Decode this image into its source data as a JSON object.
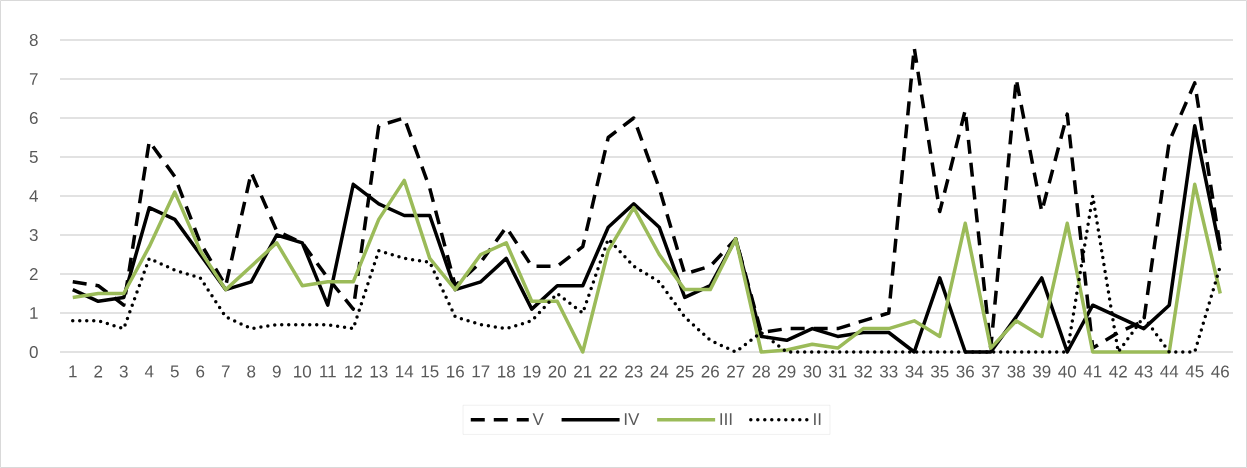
{
  "chart_data": {
    "type": "line",
    "categories": [
      "1",
      "2",
      "3",
      "4",
      "5",
      "6",
      "7",
      "8",
      "9",
      "10",
      "11",
      "12",
      "13",
      "14",
      "15",
      "16",
      "17",
      "18",
      "19",
      "20",
      "21",
      "22",
      "23",
      "24",
      "25",
      "26",
      "27",
      "28",
      "29",
      "30",
      "31",
      "32",
      "33",
      "34",
      "35",
      "36",
      "37",
      "38",
      "39",
      "40",
      "41",
      "42",
      "43",
      "44",
      "45",
      "46"
    ],
    "ylim": [
      0,
      8
    ],
    "yticks": [
      0,
      1,
      2,
      3,
      4,
      5,
      6,
      7,
      8
    ],
    "grid": "y",
    "legend": "bottom",
    "series": [
      {
        "name": "V",
        "color": "#000000",
        "line_style": "dashed",
        "values": [
          1.8,
          1.7,
          1.2,
          5.4,
          4.5,
          2.8,
          1.7,
          4.6,
          3.1,
          2.8,
          1.9,
          1.1,
          5.8,
          6.0,
          4.2,
          1.7,
          2.3,
          3.2,
          2.2,
          2.2,
          2.7,
          5.5,
          6.0,
          4.2,
          2.0,
          2.2,
          2.9,
          0.5,
          0.6,
          0.6,
          0.6,
          0.8,
          1.0,
          7.8,
          3.6,
          6.2,
          0.1,
          7.0,
          3.6,
          6.1,
          0.1,
          0.5,
          0.8,
          5.4,
          6.9,
          2.7
        ]
      },
      {
        "name": "IV",
        "color": "#000000",
        "line_style": "solid",
        "values": [
          1.6,
          1.3,
          1.4,
          3.7,
          3.4,
          2.5,
          1.6,
          1.8,
          3.0,
          2.8,
          1.2,
          4.3,
          3.8,
          3.5,
          3.5,
          1.6,
          1.8,
          2.4,
          1.1,
          1.7,
          1.7,
          3.2,
          3.8,
          3.2,
          1.4,
          1.7,
          2.9,
          0.4,
          0.3,
          0.6,
          0.4,
          0.5,
          0.5,
          0,
          1.9,
          0,
          0,
          0.9,
          1.9,
          0,
          1.2,
          0.9,
          0.6,
          1.2,
          5.8,
          2.6
        ]
      },
      {
        "name": "III",
        "color": "#9bbb59",
        "line_style": "solid",
        "values": [
          1.4,
          1.5,
          1.5,
          2.7,
          4.1,
          2.6,
          1.6,
          2.2,
          2.8,
          1.7,
          1.8,
          1.8,
          3.4,
          4.4,
          2.4,
          1.6,
          2.5,
          2.8,
          1.3,
          1.3,
          0,
          2.6,
          3.7,
          2.5,
          1.6,
          1.6,
          2.9,
          0,
          0.05,
          0.2,
          0.1,
          0.6,
          0.6,
          0.8,
          0.4,
          3.3,
          0.1,
          0.8,
          0.4,
          3.3,
          0,
          0,
          0,
          0,
          4.3,
          1.5
        ]
      },
      {
        "name": "II",
        "color": "#000000",
        "line_style": "dotted",
        "values": [
          0.8,
          0.8,
          0.6,
          2.4,
          2.1,
          1.9,
          0.9,
          0.6,
          0.7,
          0.7,
          0.7,
          0.6,
          2.6,
          2.4,
          2.3,
          0.9,
          0.7,
          0.6,
          0.8,
          1.5,
          1.0,
          2.9,
          2.2,
          1.8,
          0.9,
          0.3,
          0,
          0.5,
          0,
          0,
          0,
          0,
          0,
          0,
          0,
          0,
          0,
          0,
          0,
          0,
          4.0,
          0,
          0.9,
          0,
          0,
          2.2
        ]
      }
    ]
  }
}
